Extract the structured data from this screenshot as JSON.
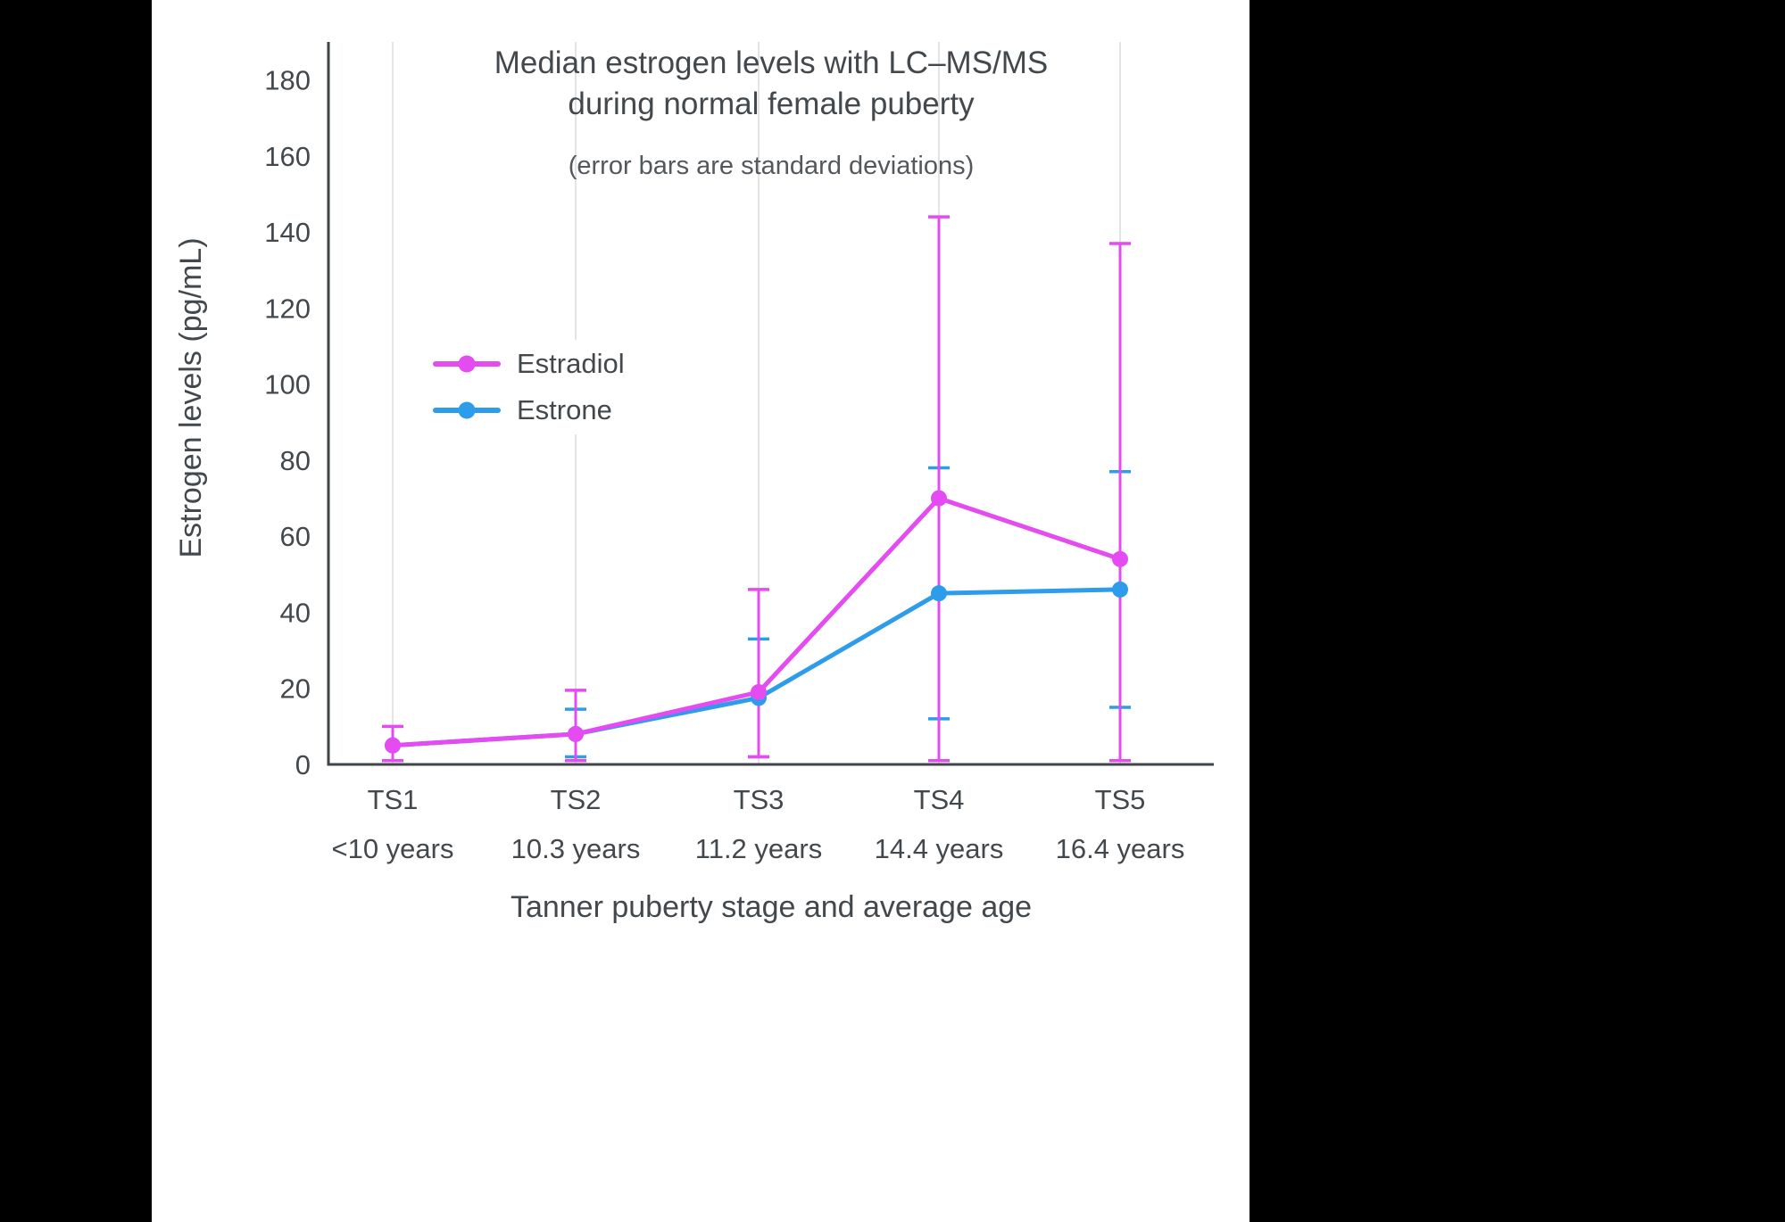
{
  "chart_data": {
    "type": "line",
    "title_line1": "Median estrogen levels with LC–MS/MS",
    "title_line2": "during normal female puberty",
    "subtitle": "(error bars are standard deviations)",
    "ylabel": "Estrogen levels (pg/mL)",
    "xlabel": "Tanner puberty stage and average age",
    "ylim": [
      0,
      190
    ],
    "yticks": [
      0,
      20,
      40,
      60,
      80,
      100,
      120,
      140,
      160,
      180
    ],
    "categories": [
      "TS1",
      "TS2",
      "TS3",
      "TS4",
      "TS5"
    ],
    "category_sublabels": [
      "<10 years",
      "10.3 years",
      "11.2 years",
      "14.4 years",
      "16.4 years"
    ],
    "grid": "vertical-only",
    "legend_position": "upper-left-inside",
    "legend_order": [
      "Estradiol",
      "Estrone"
    ],
    "series": [
      {
        "name": "Estrone",
        "color": "#2d9ceb",
        "values": [
          5,
          8,
          17.5,
          45,
          46
        ],
        "err_upper": [
          null,
          14.5,
          33,
          78,
          77
        ],
        "err_lower": [
          null,
          2,
          2,
          12,
          15
        ]
      },
      {
        "name": "Estradiol",
        "color": "#e44cf2",
        "values": [
          5,
          8,
          19,
          70,
          54
        ],
        "err_upper": [
          10,
          19.5,
          46,
          144,
          137
        ],
        "err_lower": [
          1,
          1,
          2,
          1,
          1
        ]
      }
    ],
    "colors": {
      "axis": "#3f4448",
      "text": "#43484d",
      "gridline": "#e4e4e4",
      "background": "#ffffff",
      "page_background": "#000000"
    }
  }
}
